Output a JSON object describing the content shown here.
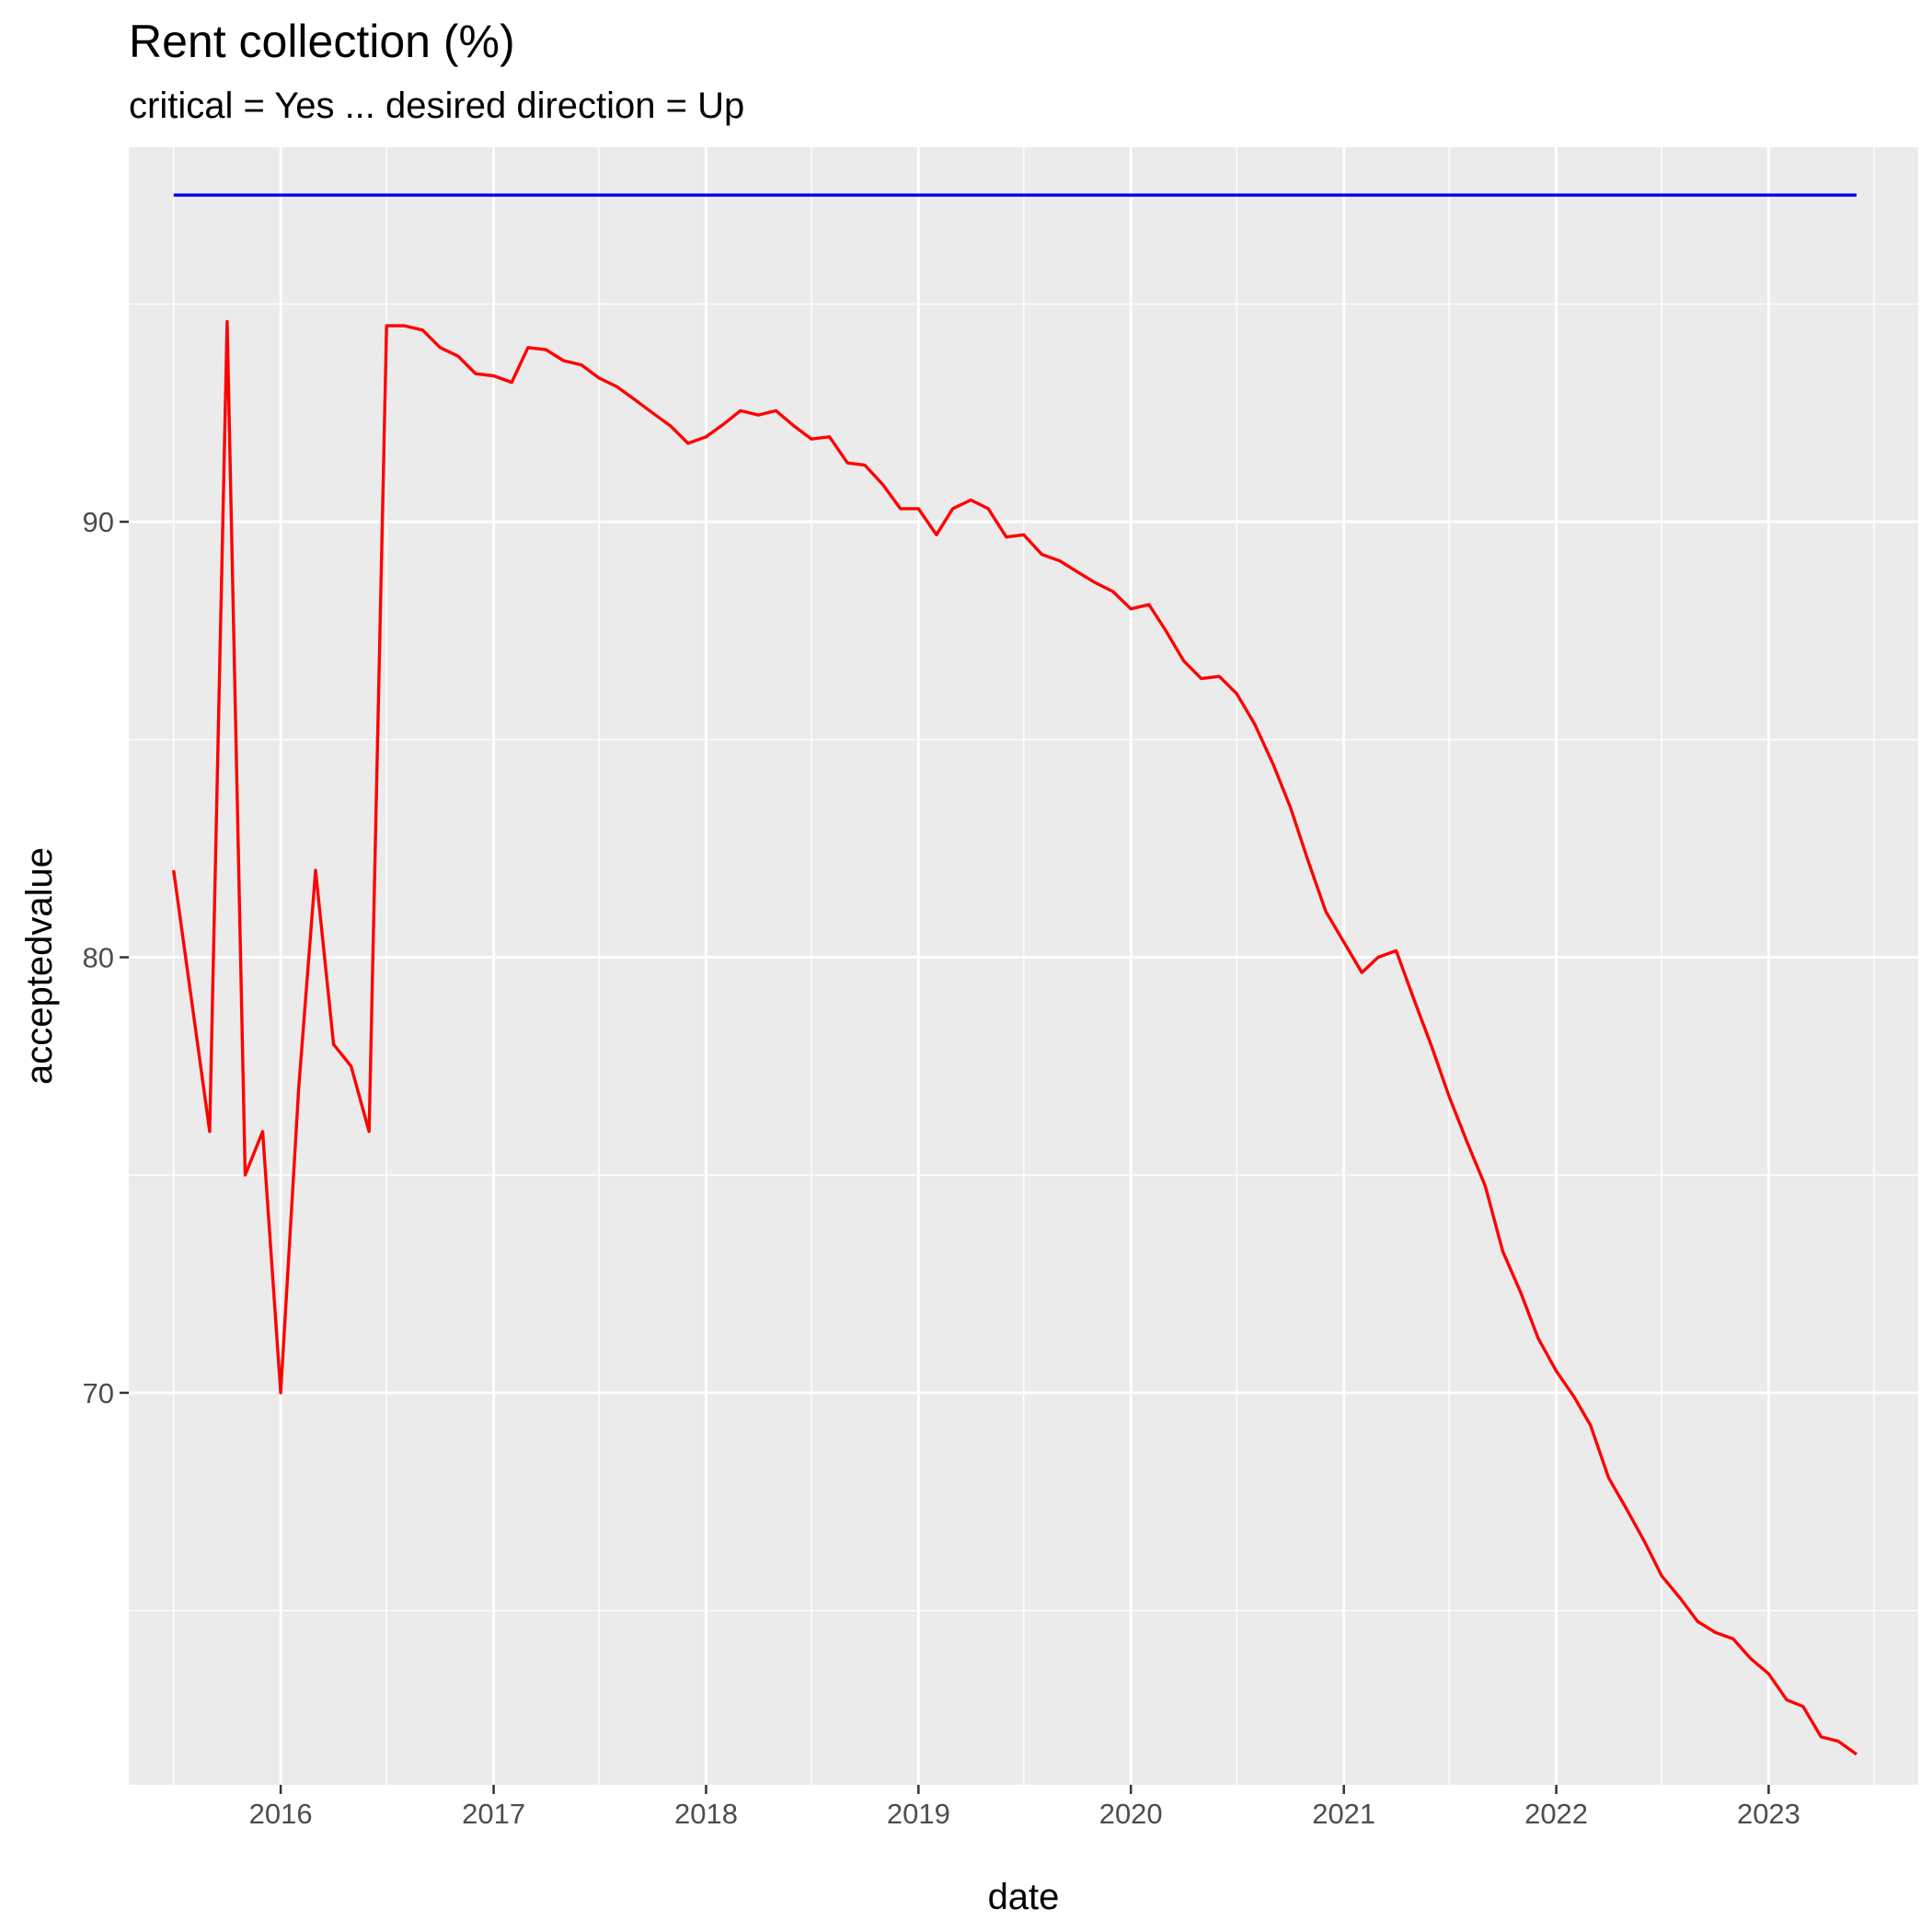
{
  "chart_data": {
    "type": "line",
    "title": "Rent collection (%)",
    "subtitle": "critical = Yes ... desired direction = Up",
    "xlabel": "date",
    "ylabel": "acceptedvalue",
    "x_ticks": [
      "2016",
      "2017",
      "2018",
      "2019",
      "2020",
      "2021",
      "2022",
      "2023"
    ],
    "y_ticks": [
      70,
      80,
      90
    ],
    "xlim": [
      "2015-04-15",
      "2023-09-15"
    ],
    "ylim": [
      61.0,
      98.6
    ],
    "grid": true,
    "background": "#ebebeb",
    "series": [
      {
        "color": "#ff0000",
        "x": [
          "2015-07",
          "2015-08",
          "2015-09",
          "2015-10",
          "2015-11",
          "2015-12",
          "2016-01",
          "2016-02",
          "2016-03",
          "2016-04",
          "2016-05",
          "2016-06",
          "2016-07",
          "2016-08",
          "2016-09",
          "2016-10",
          "2016-11",
          "2016-12",
          "2017-01",
          "2017-02",
          "2017-03",
          "2017-04",
          "2017-05",
          "2017-06",
          "2017-07",
          "2017-08",
          "2017-09",
          "2017-10",
          "2017-11",
          "2017-12",
          "2018-01",
          "2018-02",
          "2018-03",
          "2018-04",
          "2018-05",
          "2018-06",
          "2018-07",
          "2018-08",
          "2018-09",
          "2018-10",
          "2018-11",
          "2018-12",
          "2019-01",
          "2019-02",
          "2019-03",
          "2019-04",
          "2019-05",
          "2019-06",
          "2019-07",
          "2019-08",
          "2019-09",
          "2019-10",
          "2019-11",
          "2019-12",
          "2020-01",
          "2020-02",
          "2020-03",
          "2020-04",
          "2020-05",
          "2020-06",
          "2020-07",
          "2020-08",
          "2020-09",
          "2020-10",
          "2020-11",
          "2020-12",
          "2021-01",
          "2021-02",
          "2021-03",
          "2021-04",
          "2021-05",
          "2021-06",
          "2021-07",
          "2021-08",
          "2021-09",
          "2021-10",
          "2021-11",
          "2021-12",
          "2022-01",
          "2022-02",
          "2022-03",
          "2022-04",
          "2022-05",
          "2022-06",
          "2022-07",
          "2022-08",
          "2022-09",
          "2022-10",
          "2022-11",
          "2022-12",
          "2023-01",
          "2023-02",
          "2023-03",
          "2023-04",
          "2023-05",
          "2023-06"
        ],
        "values": [
          82.0,
          79.0,
          76.0,
          94.6,
          75.0,
          76.0,
          70.0,
          77.0,
          82.0,
          78.0,
          77.5,
          76.0,
          94.5,
          94.5,
          94.4,
          94.0,
          93.8,
          93.4,
          93.35,
          93.2,
          94.0,
          93.95,
          93.7,
          93.6,
          93.3,
          93.1,
          92.8,
          92.5,
          92.2,
          91.8,
          91.95,
          92.25,
          92.55,
          92.45,
          92.55,
          92.2,
          91.9,
          91.95,
          91.35,
          91.3,
          90.85,
          90.3,
          90.3,
          89.7,
          90.3,
          90.5,
          90.3,
          89.65,
          89.7,
          89.25,
          89.1,
          88.85,
          88.6,
          88.4,
          88.0,
          88.1,
          87.5,
          86.8,
          86.4,
          86.45,
          86.05,
          85.35,
          84.45,
          83.45,
          82.2,
          81.05,
          80.35,
          79.65,
          80.0,
          80.15,
          79.05,
          77.95,
          76.8,
          75.75,
          74.75,
          73.25,
          72.3,
          71.25,
          70.5,
          69.9,
          69.25,
          68.05,
          67.35,
          66.6,
          65.8,
          65.3,
          64.75,
          64.5,
          64.35,
          63.9,
          63.55,
          62.95,
          62.8,
          62.1,
          62.0,
          61.7
        ]
      },
      {
        "color": "#0000ff",
        "x": [
          "2015-07",
          "2023-06"
        ],
        "values": [
          97.5,
          97.5
        ]
      }
    ]
  }
}
